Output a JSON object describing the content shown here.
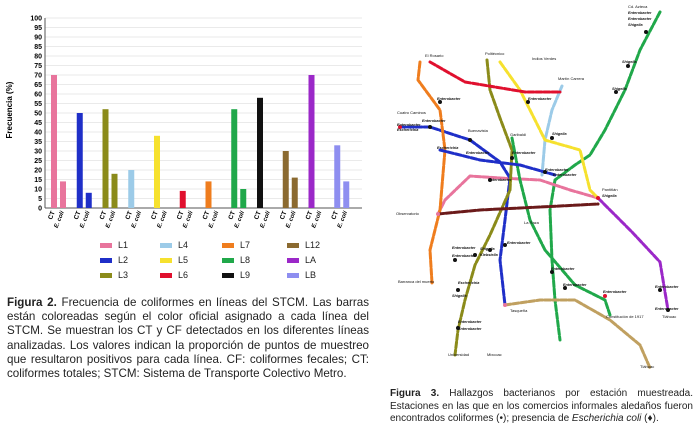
{
  "chart_data": {
    "type": "bar",
    "ylabel": "Frecuencia (%)",
    "ylim": [
      0,
      100
    ],
    "yticks": [
      0,
      5,
      10,
      15,
      20,
      25,
      30,
      35,
      40,
      45,
      50,
      55,
      60,
      65,
      70,
      75,
      80,
      85,
      90,
      95,
      100
    ],
    "categories": [
      "L1",
      "L2",
      "L3",
      "L4",
      "L5",
      "L6",
      "L7",
      "L8",
      "L9",
      "L12",
      "LA",
      "LB"
    ],
    "bar_labels": [
      "CT",
      "E. coli"
    ],
    "colors": {
      "L1": "#e8749c",
      "L2": "#1f2fc8",
      "L3": "#8b8b1a",
      "L4": "#9ccbe8",
      "L5": "#f6e12e",
      "L6": "#e0102e",
      "L7": "#ef7d1e",
      "L8": "#20a84a",
      "L9": "#111111",
      "L12": "#8b6a30",
      "LA": "#9b28c8",
      "LB": "#8e8ef0"
    },
    "series": [
      {
        "name": "CT",
        "values": [
          70,
          50,
          52,
          20,
          38,
          9,
          14,
          52,
          58,
          30,
          70,
          33
        ]
      },
      {
        "name": "E. coli",
        "values": [
          14,
          8,
          18,
          0,
          0,
          0,
          0,
          10,
          0,
          16,
          0,
          14
        ]
      }
    ],
    "grid": true,
    "legend": "below"
  },
  "figure2": {
    "label": "Figura 2.",
    "caption": " Frecuencia de coliformes en líneas del STCM. Las barras están coloreadas según el color oficial asignado a cada línea del STCM. Se muestran los CT y CF detectados en los diferentes líneas analizadas. Los valores indican la proporción de puntos de muestreo que resultaron positivos para cada línea. CF: coliformes fecales; CT: coliformes totales; STCM: Sistema de Transporte Colectivo Metro."
  },
  "figure3": {
    "label": "Figura 3.",
    "caption_a": " Hallazgos bacterianos por estación muestreada. Estaciones en las que en los comercios informales aledaños fueron encontrados coliformes (•); presencia de ",
    "caption_italic": "Escherichia coli",
    "caption_b": " (♦)."
  },
  "map": {
    "stations": [
      {
        "t": "Cd. Azteca",
        "x": 628,
        "y": 8
      },
      {
        "t": "Enterobacter",
        "x": 628,
        "y": 14,
        "b": true
      },
      {
        "t": "Enterobacter",
        "x": 628,
        "y": 20,
        "b": true
      },
      {
        "t": "Shigella",
        "x": 628,
        "y": 26,
        "b": true
      },
      {
        "t": "El Rosario",
        "x": 425,
        "y": 57
      },
      {
        "t": "Politécnico",
        "x": 485,
        "y": 55
      },
      {
        "t": "Indios Verdes",
        "x": 532,
        "y": 60
      },
      {
        "t": "Martín Carrera",
        "x": 558,
        "y": 80
      },
      {
        "t": "Shigella",
        "x": 622,
        "y": 63,
        "b": true
      },
      {
        "t": "Shigella",
        "x": 612,
        "y": 90,
        "b": true
      },
      {
        "t": "Enterobacter",
        "x": 437,
        "y": 100,
        "b": true
      },
      {
        "t": "Enterobacter",
        "x": 528,
        "y": 100,
        "b": true
      },
      {
        "t": "Cuatro Caminos",
        "x": 397,
        "y": 114
      },
      {
        "t": "Enterobacter",
        "x": 397,
        "y": 126,
        "b": true
      },
      {
        "t": "Escherichia",
        "x": 397,
        "y": 131,
        "b": true
      },
      {
        "t": "Enterobacter",
        "x": 422,
        "y": 122,
        "b": true
      },
      {
        "t": "Buenavista",
        "x": 468,
        "y": 132
      },
      {
        "t": "Garibaldi",
        "x": 510,
        "y": 136
      },
      {
        "t": "Shigella",
        "x": 552,
        "y": 135,
        "b": true
      },
      {
        "t": "Escherichia",
        "x": 437,
        "y": 149,
        "b": true
      },
      {
        "t": "Enterobacter",
        "x": 466,
        "y": 154,
        "b": true
      },
      {
        "t": "Enterobacter",
        "x": 512,
        "y": 154,
        "b": true
      },
      {
        "t": "Enterobacter",
        "x": 545,
        "y": 171,
        "b": true
      },
      {
        "t": "Enterobacter",
        "x": 553,
        "y": 176,
        "b": true
      },
      {
        "t": "Enterobacter",
        "x": 488,
        "y": 181,
        "b": true
      },
      {
        "t": "Pantitlán",
        "x": 602,
        "y": 191
      },
      {
        "t": "Shigella",
        "x": 602,
        "y": 197,
        "b": true
      },
      {
        "t": "Observatorio",
        "x": 396,
        "y": 215
      },
      {
        "t": "La Raza",
        "x": 524,
        "y": 224
      },
      {
        "t": "Enterobacter",
        "x": 507,
        "y": 244,
        "b": true
      },
      {
        "t": "Enterobacter",
        "x": 452,
        "y": 249,
        "b": true
      },
      {
        "t": "Enterobacter",
        "x": 452,
        "y": 257,
        "b": true
      },
      {
        "t": "Shigella",
        "x": 480,
        "y": 250,
        "b": true
      },
      {
        "t": "Klebsiella",
        "x": 480,
        "y": 256,
        "b": true
      },
      {
        "t": "Enterobacter",
        "x": 551,
        "y": 270,
        "b": true
      },
      {
        "t": "Barranca del muerto",
        "x": 398,
        "y": 283
      },
      {
        "t": "Escherichia",
        "x": 458,
        "y": 284,
        "b": true
      },
      {
        "t": "Shigella",
        "x": 452,
        "y": 297,
        "b": true
      },
      {
        "t": "Enterobacter",
        "x": 563,
        "y": 286,
        "b": true
      },
      {
        "t": "Enterobacter",
        "x": 603,
        "y": 293,
        "b": true
      },
      {
        "t": "Enterobacter",
        "x": 655,
        "y": 288,
        "b": true
      },
      {
        "t": "Constitución de 1917",
        "x": 606,
        "y": 318
      },
      {
        "t": "Tasqueña",
        "x": 510,
        "y": 312
      },
      {
        "t": "Enterobacter",
        "x": 458,
        "y": 323,
        "b": true
      },
      {
        "t": "Enterobacter",
        "x": 458,
        "y": 330,
        "b": true
      },
      {
        "t": "Enterobacter",
        "x": 655,
        "y": 310,
        "b": true
      },
      {
        "t": "Tláhuac",
        "x": 662,
        "y": 318
      },
      {
        "t": "Universidad",
        "x": 448,
        "y": 356
      },
      {
        "t": "Mixcoac",
        "x": 487,
        "y": 356
      },
      {
        "t": "Tláhuac",
        "x": 640,
        "y": 368
      }
    ]
  }
}
